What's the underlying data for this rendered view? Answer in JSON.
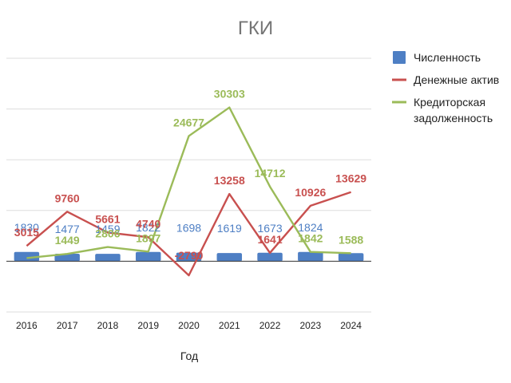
{
  "chart_data": {
    "type": "bar+line",
    "title": "ГКИ",
    "xlabel": "Год",
    "ylabel": "",
    "categories": [
      "2016",
      "2017",
      "2018",
      "2019",
      "2020",
      "2021",
      "2022",
      "2023",
      "2024"
    ],
    "ylim": [
      -10000,
      40000
    ],
    "grid": true,
    "legend_position": "right",
    "series": [
      {
        "name": "Численность",
        "kind": "bar",
        "color": "#4e7fc4",
        "values": [
          1830,
          1477,
          1459,
          1822,
          1698,
          1619,
          1673,
          1824,
          1588
        ],
        "labels": [
          "1830",
          "1477",
          "1459",
          "1822",
          "1698",
          "1619",
          "1673",
          "1824",
          ""
        ]
      },
      {
        "name": "Денежные актив",
        "kind": "line",
        "color": "#c8504f",
        "values": [
          3015,
          9760,
          5661,
          4740,
          -2790,
          13258,
          1641,
          10926,
          13629
        ],
        "labels": [
          "3015",
          "9760",
          "5661",
          "4740",
          "-2790",
          "13258",
          "1641",
          "10926",
          "13629"
        ]
      },
      {
        "name": "Кредиторская задолженность",
        "legend_lines": [
          "Кредиторская",
          "задолженность"
        ],
        "kind": "line",
        "color": "#9bbb59",
        "values": [
          620,
          1449,
          2806,
          1897,
          24677,
          30303,
          14712,
          1842,
          1588
        ],
        "labels": [
          "",
          "1449",
          "2806",
          "1897",
          "24677",
          "30303",
          "14712",
          "1842",
          "1588"
        ]
      }
    ]
  }
}
